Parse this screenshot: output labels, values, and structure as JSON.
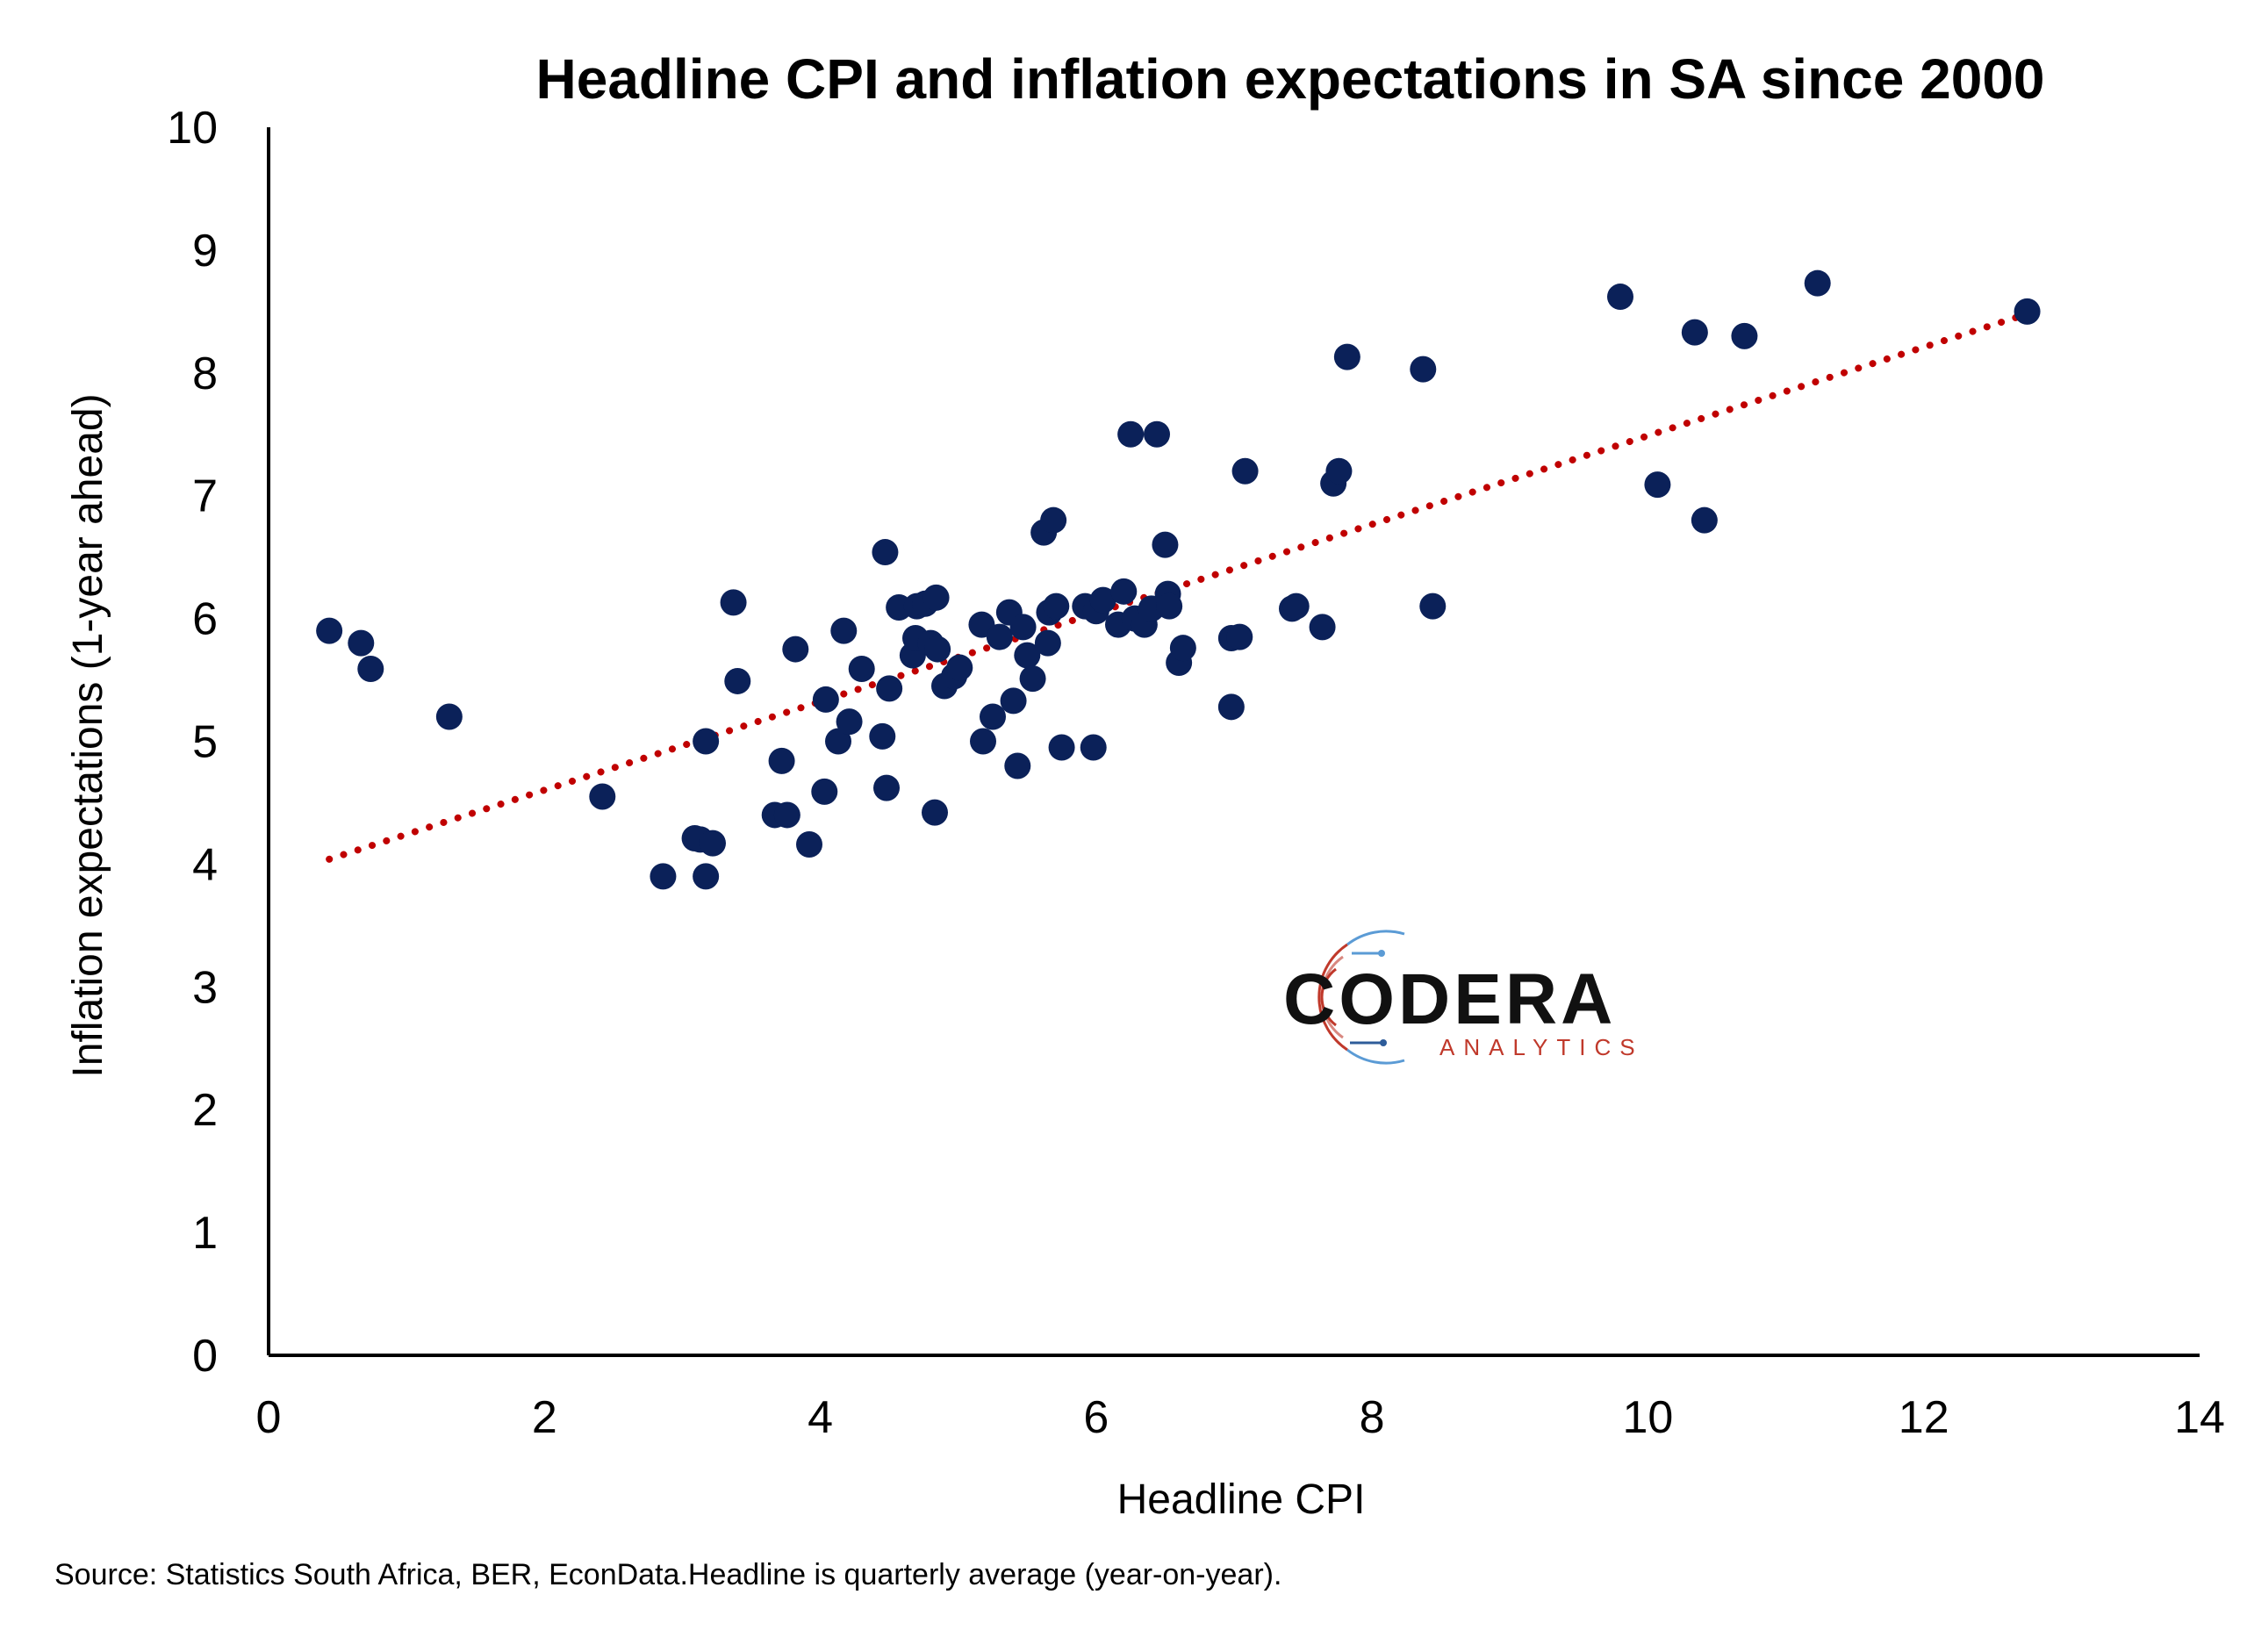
{
  "chart_data": {
    "type": "scatter",
    "title": "Headline CPI and inflation expectations in SA since 2000",
    "xlabel": "Headline CPI",
    "ylabel": "Inflation expectations (1-year ahead)",
    "xlim": [
      0,
      14
    ],
    "ylim": [
      0,
      10
    ],
    "xticks": [
      0,
      2,
      4,
      6,
      8,
      10,
      12,
      14
    ],
    "yticks": [
      0,
      1,
      2,
      3,
      4,
      5,
      6,
      7,
      8,
      9,
      10
    ],
    "grid": false,
    "legend": "none",
    "point_color": "#0b2159",
    "trendline": {
      "style": "dotted",
      "color": "#c00000",
      "x": [
        0.44,
        12.75
      ],
      "y": [
        4.04,
        8.48
      ]
    },
    "points": [
      [
        0.44,
        5.9
      ],
      [
        0.67,
        5.8
      ],
      [
        0.74,
        5.59
      ],
      [
        1.31,
        5.2
      ],
      [
        2.42,
        4.55
      ],
      [
        2.86,
        3.9
      ],
      [
        3.09,
        4.21
      ],
      [
        3.13,
        4.2
      ],
      [
        3.17,
        3.9
      ],
      [
        3.17,
        5.0
      ],
      [
        3.22,
        4.17
      ],
      [
        3.37,
        6.13
      ],
      [
        3.4,
        5.49
      ],
      [
        3.67,
        4.4
      ],
      [
        3.72,
        4.84
      ],
      [
        3.76,
        4.4
      ],
      [
        3.82,
        5.75
      ],
      [
        3.92,
        4.16
      ],
      [
        4.03,
        4.59
      ],
      [
        4.04,
        5.34
      ],
      [
        4.13,
        5.0
      ],
      [
        4.17,
        5.9
      ],
      [
        4.21,
        5.16
      ],
      [
        4.3,
        5.59
      ],
      [
        4.45,
        5.04
      ],
      [
        4.47,
        6.54
      ],
      [
        4.48,
        4.62
      ],
      [
        4.5,
        5.43
      ],
      [
        4.57,
        6.09
      ],
      [
        4.67,
        5.7
      ],
      [
        4.69,
        5.84
      ],
      [
        4.7,
        6.1
      ],
      [
        4.76,
        6.12
      ],
      [
        4.8,
        5.8
      ],
      [
        4.83,
        4.42
      ],
      [
        4.84,
        6.17
      ],
      [
        4.85,
        5.75
      ],
      [
        4.9,
        5.45
      ],
      [
        4.97,
        5.53
      ],
      [
        5.01,
        5.6
      ],
      [
        5.17,
        5.95
      ],
      [
        5.18,
        5.0
      ],
      [
        5.25,
        5.2
      ],
      [
        5.3,
        5.85
      ],
      [
        5.37,
        6.05
      ],
      [
        5.4,
        5.33
      ],
      [
        5.43,
        4.8
      ],
      [
        5.47,
        5.93
      ],
      [
        5.5,
        5.7
      ],
      [
        5.54,
        5.51
      ],
      [
        5.62,
        6.7
      ],
      [
        5.65,
        5.8
      ],
      [
        5.66,
        6.05
      ],
      [
        5.69,
        6.8
      ],
      [
        5.71,
        6.1
      ],
      [
        5.75,
        4.95
      ],
      [
        5.92,
        6.1
      ],
      [
        5.98,
        4.95
      ],
      [
        6.0,
        6.06
      ],
      [
        6.05,
        6.15
      ],
      [
        6.16,
        5.95
      ],
      [
        6.2,
        6.22
      ],
      [
        6.25,
        7.5
      ],
      [
        6.28,
        6.0
      ],
      [
        6.35,
        5.95
      ],
      [
        6.4,
        6.08
      ],
      [
        6.44,
        7.5
      ],
      [
        6.5,
        6.6
      ],
      [
        6.52,
        6.2
      ],
      [
        6.53,
        6.1
      ],
      [
        6.6,
        5.64
      ],
      [
        6.63,
        5.76
      ],
      [
        6.98,
        5.28
      ],
      [
        6.98,
        5.84
      ],
      [
        7.04,
        5.85
      ],
      [
        7.08,
        7.2
      ],
      [
        7.42,
        6.08
      ],
      [
        7.45,
        6.1
      ],
      [
        7.64,
        5.93
      ],
      [
        7.72,
        7.1
      ],
      [
        7.76,
        7.2
      ],
      [
        7.82,
        8.13
      ],
      [
        8.37,
        8.03
      ],
      [
        8.44,
        6.1
      ],
      [
        9.8,
        8.62
      ],
      [
        10.07,
        7.09
      ],
      [
        10.34,
        8.33
      ],
      [
        10.41,
        6.8
      ],
      [
        10.7,
        8.3
      ],
      [
        11.23,
        8.73
      ],
      [
        12.75,
        8.5
      ]
    ]
  },
  "logo": {
    "name": "CODERA",
    "tagline": "ANALYTICS",
    "colors": {
      "red": "#c0392b",
      "blue": "#5b9bd5",
      "dark": "#111111"
    }
  },
  "footer": {
    "source": "Source: Statistics South Africa, BER, EconData.Headline is quarterly average (year-on-year)."
  }
}
